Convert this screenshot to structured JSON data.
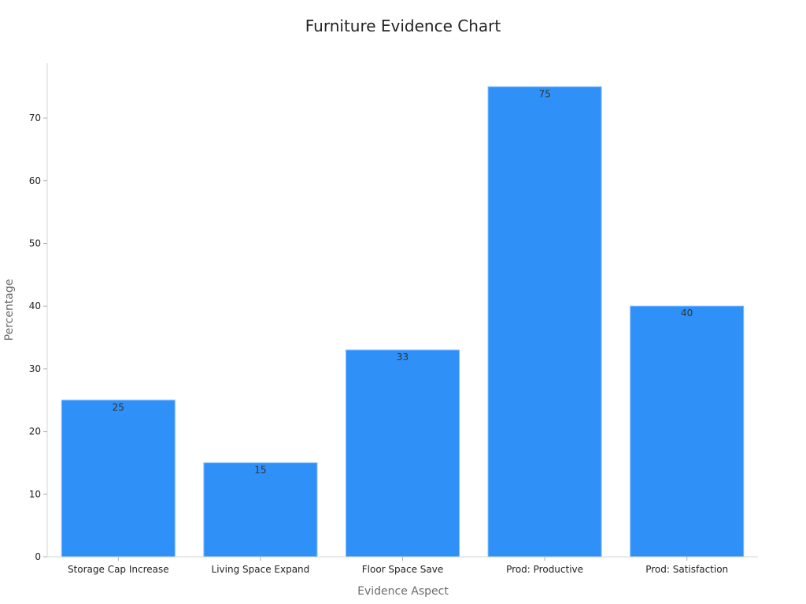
{
  "colors": {
    "bar": "#2f91f7",
    "bar_edge": "#7fbcff"
  },
  "chart_data": {
    "type": "bar",
    "title": "Furniture Evidence Chart",
    "xlabel": "Evidence Aspect",
    "ylabel": "Percentage",
    "categories": [
      "Storage Cap Increase",
      "Living Space Expand",
      "Floor Space Save",
      "Prod: Productive",
      "Prod: Satisfaction"
    ],
    "values": [
      25,
      15,
      33,
      75,
      40
    ],
    "data_labels": [
      "25",
      "15",
      "33",
      "75",
      "40"
    ],
    "yticks": [
      0,
      10,
      20,
      30,
      40,
      50,
      60,
      70
    ],
    "ylim": [
      0,
      78.75
    ],
    "grid": false,
    "legend": "none"
  }
}
